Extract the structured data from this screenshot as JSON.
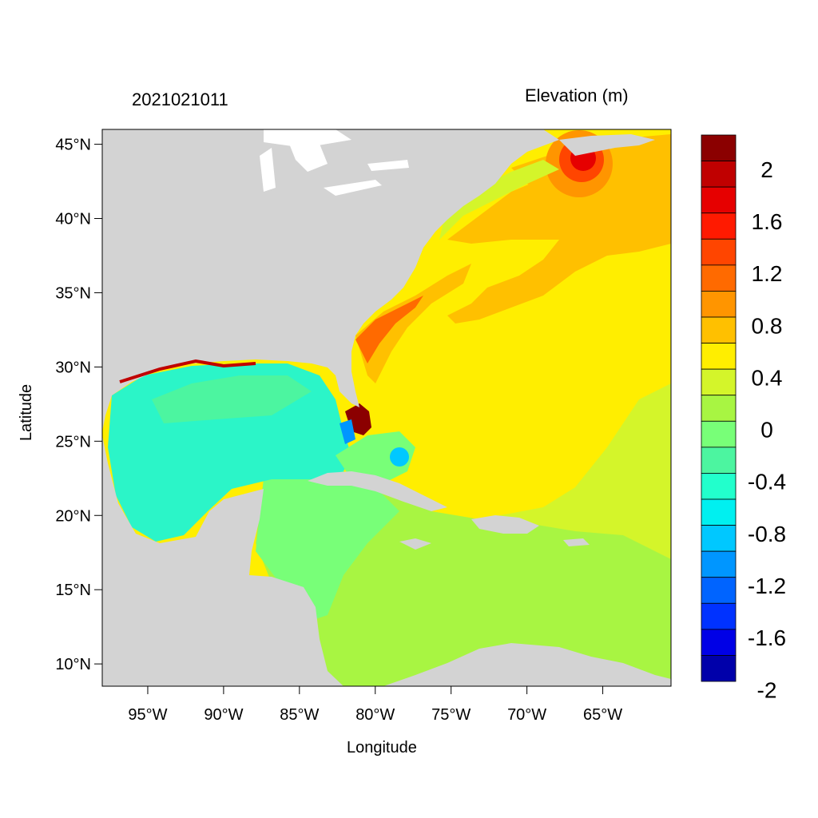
{
  "plot": {
    "timestamp": "2021021011",
    "variable_title": "Elevation (m)",
    "x_axis_label": "Longitude",
    "y_axis_label": "Latitude"
  },
  "axes": {
    "lon_range": [
      -98,
      -60.5
    ],
    "lat_range": [
      8.5,
      46
    ],
    "lon_ticks": [
      {
        "value": -95,
        "label": "95°W"
      },
      {
        "value": -90,
        "label": "90°W"
      },
      {
        "value": -85,
        "label": "85°W"
      },
      {
        "value": -80,
        "label": "80°W"
      },
      {
        "value": -75,
        "label": "75°W"
      },
      {
        "value": -70,
        "label": "70°W"
      },
      {
        "value": -65,
        "label": "65°W"
      }
    ],
    "lat_ticks": [
      {
        "value": 45,
        "label": "45°N"
      },
      {
        "value": 40,
        "label": "40°N"
      },
      {
        "value": 35,
        "label": "35°N"
      },
      {
        "value": 30,
        "label": "30°N"
      },
      {
        "value": 25,
        "label": "25°N"
      },
      {
        "value": 20,
        "label": "20°N"
      },
      {
        "value": 15,
        "label": "15°N"
      },
      {
        "value": 10,
        "label": "10°N"
      }
    ]
  },
  "colorbar": {
    "colors_top_to_bottom": [
      "#8b0000",
      "#c00000",
      "#e60000",
      "#ff1a00",
      "#ff4500",
      "#ff6a00",
      "#ff9500",
      "#ffc000",
      "#ffee00",
      "#d4f52a",
      "#a8f542",
      "#78ff78",
      "#4cf5a0",
      "#22ffcc",
      "#00f0f0",
      "#00c8ff",
      "#0096ff",
      "#0064ff",
      "#0032ff",
      "#0000e6",
      "#0000aa"
    ],
    "labels": [
      {
        "value": 2,
        "label": "2"
      },
      {
        "value": 1.6,
        "label": "1.6"
      },
      {
        "value": 1.2,
        "label": "1.2"
      },
      {
        "value": 0.8,
        "label": "0.8"
      },
      {
        "value": 0.4,
        "label": "0.4"
      },
      {
        "value": 0,
        "label": "0"
      },
      {
        "value": -0.4,
        "label": "-0.4"
      },
      {
        "value": -0.8,
        "label": "-0.8"
      },
      {
        "value": -1.2,
        "label": "-1.2"
      },
      {
        "value": -1.6,
        "label": "-1.6"
      },
      {
        "value": -2,
        "label": "-2"
      }
    ]
  },
  "map_colors": {
    "land": "#d3d3d3",
    "lakes": "#ffffff",
    "gulf_of_mexico": "#2bf5c8",
    "caribbean": "#a8f542",
    "atlantic_main": "#ffee00",
    "atlantic_high": "#ffc000",
    "florida_peak": "#8b0000"
  }
}
